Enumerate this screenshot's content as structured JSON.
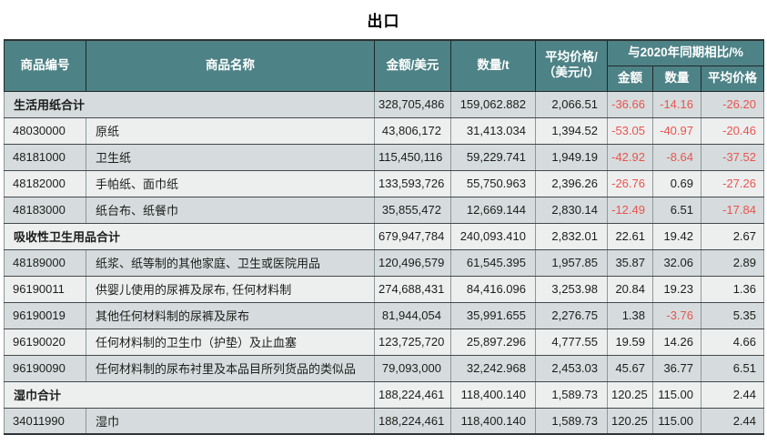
{
  "page_title": "出口",
  "colors": {
    "header_bg": "#4d8286",
    "header_text": "#ffffff",
    "row_dark": "#d6dcdd",
    "row_light": "#edefef",
    "negative_value": "#e9534f"
  },
  "table": {
    "headers": {
      "code": "商品编号",
      "name": "商品名称",
      "amount": "金额/美元",
      "qty": "数量/t",
      "avg_price_line1": "平均价格/",
      "avg_price_line2": "（美元/t）",
      "yoy_group": "与2020年同期相比/%",
      "yoy_amount": "金额",
      "yoy_qty": "数量",
      "yoy_avg": "平均价格"
    },
    "rows": [
      {
        "type": "total",
        "code": "",
        "name": "生活用纸合计",
        "amount": "328,705,486",
        "qty": "159,062.882",
        "avg_price": "2,066.51",
        "yoy_amount": "-36.66",
        "yoy_qty": "-14.16",
        "yoy_avg": "-26.20"
      },
      {
        "type": "item",
        "code": "48030000",
        "name": "原纸",
        "amount": "43,806,172",
        "qty": "31,413.034",
        "avg_price": "1,394.52",
        "yoy_amount": "-53.05",
        "yoy_qty": "-40.97",
        "yoy_avg": "-20.46"
      },
      {
        "type": "item",
        "code": "48181000",
        "name": "卫生纸",
        "amount": "115,450,116",
        "qty": "59,229.741",
        "avg_price": "1,949.19",
        "yoy_amount": "-42.92",
        "yoy_qty": "-8.64",
        "yoy_avg": "-37.52"
      },
      {
        "type": "item",
        "code": "48182000",
        "name": "手帕纸、面巾纸",
        "amount": "133,593,726",
        "qty": "55,750.963",
        "avg_price": "2,396.26",
        "yoy_amount": "-26.76",
        "yoy_qty": "0.69",
        "yoy_avg": "-27.26"
      },
      {
        "type": "item",
        "code": "48183000",
        "name": "纸台布、纸餐巾",
        "amount": "35,855,472",
        "qty": "12,669.144",
        "avg_price": "2,830.14",
        "yoy_amount": "-12.49",
        "yoy_qty": "6.51",
        "yoy_avg": "-17.84"
      },
      {
        "type": "total",
        "code": "",
        "name": "吸收性卫生用品合计",
        "amount": "679,947,784",
        "qty": "240,093.410",
        "avg_price": "2,832.01",
        "yoy_amount": "22.61",
        "yoy_qty": "19.42",
        "yoy_avg": "2.67"
      },
      {
        "type": "item",
        "code": "48189000",
        "name": "纸浆、纸等制的其他家庭、卫生或医院用品",
        "amount": "120,496,579",
        "qty": "61,545.395",
        "avg_price": "1,957.85",
        "yoy_amount": "35.87",
        "yoy_qty": "32.06",
        "yoy_avg": "2.89"
      },
      {
        "type": "item",
        "code": "96190011",
        "name": "供婴儿使用的尿裤及尿布, 任何材料制",
        "amount": "274,688,431",
        "qty": "84,416.096",
        "avg_price": "3,253.98",
        "yoy_amount": "20.84",
        "yoy_qty": "19.23",
        "yoy_avg": "1.36"
      },
      {
        "type": "item",
        "code": "96190019",
        "name": "其他任何材料制的尿裤及尿布",
        "amount": "81,944,054",
        "qty": "35,991.655",
        "avg_price": "2,276.75",
        "yoy_amount": "1.38",
        "yoy_qty": "-3.76",
        "yoy_avg": "5.35"
      },
      {
        "type": "item",
        "code": "96190020",
        "name": "任何材料制的卫生巾（护垫）及止血塞",
        "amount": "123,725,720",
        "qty": "25,897.296",
        "avg_price": "4,777.55",
        "yoy_amount": "19.59",
        "yoy_qty": "14.26",
        "yoy_avg": "4.66"
      },
      {
        "type": "item",
        "code": "96190090",
        "name": "任何材料制的尿布衬里及本品目所列货品的类似品",
        "amount": "79,093,000",
        "qty": "32,242.968",
        "avg_price": "2,453.03",
        "yoy_amount": "45.67",
        "yoy_qty": "36.77",
        "yoy_avg": "6.51"
      },
      {
        "type": "total",
        "code": "",
        "name": "湿巾合计",
        "amount": "188,224,461",
        "qty": "118,400.140",
        "avg_price": "1,589.73",
        "yoy_amount": "120.25",
        "yoy_qty": "115.00",
        "yoy_avg": "2.44"
      },
      {
        "type": "item",
        "code": "34011990",
        "name": "湿巾",
        "amount": "188,224,461",
        "qty": "118,400.140",
        "avg_price": "1,589.73",
        "yoy_amount": "120.25",
        "yoy_qty": "115.00",
        "yoy_avg": "2.44"
      }
    ]
  }
}
